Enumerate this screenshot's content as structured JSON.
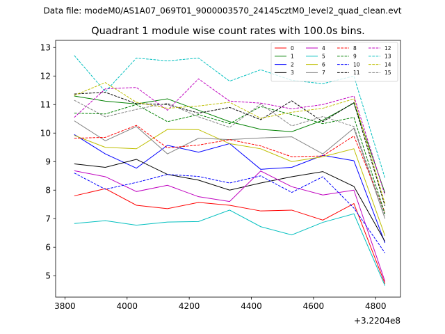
{
  "figure": {
    "suptitle": "Data file: modeM0/AS1A07_069T01_9000003570_24145cztM0_level2_quad_clean.evt"
  },
  "chart_data": {
    "type": "line",
    "title": "Quadrant 1 module wise count rates with 100.0s bins.",
    "xlabel": "",
    "ylabel": "",
    "x_offset_label": "+3.2204e8",
    "xlim": [
      3770,
      4880
    ],
    "ylim": [
      4.25,
      13.25
    ],
    "x_ticks": [
      3800,
      4000,
      4200,
      4400,
      4600,
      4800
    ],
    "y_ticks": [
      5,
      6,
      7,
      8,
      9,
      10,
      11,
      12,
      13
    ],
    "grid": false,
    "legend_location": "top-right",
    "x": [
      3830,
      3930,
      4030,
      4130,
      4230,
      4330,
      4430,
      4530,
      4630,
      4730,
      4830
    ],
    "series": [
      {
        "name": "0",
        "color": "#ff0000",
        "dash": "solid",
        "values": [
          7.8,
          8.05,
          7.47,
          7.35,
          7.57,
          7.47,
          7.27,
          7.3,
          6.95,
          7.53,
          4.72
        ]
      },
      {
        "name": "1",
        "color": "#008000",
        "dash": "solid",
        "values": [
          11.3,
          11.12,
          11.02,
          11.2,
          10.8,
          10.4,
          10.13,
          10.05,
          10.45,
          11.05,
          7.9
        ]
      },
      {
        "name": "2",
        "color": "#0000ff",
        "dash": "solid",
        "values": [
          9.95,
          9.27,
          8.77,
          9.57,
          9.33,
          9.63,
          8.73,
          8.8,
          9.22,
          9.03,
          6.15
        ]
      },
      {
        "name": "3",
        "color": "#000000",
        "dash": "solid",
        "values": [
          8.92,
          8.8,
          9.08,
          8.55,
          8.35,
          8.0,
          8.25,
          8.47,
          8.65,
          8.13,
          6.2
        ]
      },
      {
        "name": "4",
        "color": "#bf00bf",
        "dash": "solid",
        "values": [
          8.68,
          8.47,
          7.95,
          8.17,
          7.77,
          7.6,
          8.67,
          8.12,
          7.83,
          8.0,
          4.8
        ]
      },
      {
        "name": "5",
        "color": "#00bfbf",
        "dash": "solid",
        "values": [
          6.83,
          6.93,
          6.77,
          6.88,
          6.9,
          7.3,
          6.72,
          6.43,
          6.87,
          7.17,
          4.65
        ]
      },
      {
        "name": "6",
        "color": "#bfbf00",
        "dash": "solid",
        "values": [
          9.92,
          9.5,
          9.45,
          10.13,
          10.12,
          9.63,
          9.45,
          9.0,
          9.17,
          9.45,
          6.4
        ]
      },
      {
        "name": "7",
        "color": "#808080",
        "dash": "solid",
        "values": [
          10.43,
          9.73,
          10.23,
          9.27,
          9.82,
          9.77,
          9.83,
          9.87,
          9.27,
          10.17,
          7.0
        ]
      },
      {
        "name": "8",
        "color": "#ff0000",
        "dash": "dashed",
        "values": [
          9.82,
          9.85,
          10.27,
          9.48,
          9.58,
          9.77,
          9.55,
          9.17,
          9.2,
          9.9,
          7.22
        ]
      },
      {
        "name": "9",
        "color": "#008000",
        "dash": "dashed",
        "values": [
          10.7,
          10.67,
          11.0,
          10.4,
          10.65,
          10.33,
          10.93,
          10.65,
          10.33,
          10.55,
          7.17
        ]
      },
      {
        "name": "10",
        "color": "#0000ff",
        "dash": "dashed",
        "values": [
          8.6,
          8.03,
          8.27,
          8.55,
          8.48,
          8.25,
          8.5,
          7.92,
          8.47,
          7.37,
          5.8
        ]
      },
      {
        "name": "11",
        "color": "#000000",
        "dash": "dashed",
        "values": [
          11.37,
          11.43,
          11.03,
          11.0,
          10.7,
          10.9,
          10.47,
          11.13,
          10.4,
          11.07,
          7.45
        ]
      },
      {
        "name": "12",
        "color": "#bf00bf",
        "dash": "dashed",
        "values": [
          10.55,
          11.55,
          11.6,
          10.8,
          11.9,
          11.12,
          11.05,
          10.85,
          11.0,
          11.3,
          7.83
        ]
      },
      {
        "name": "13",
        "color": "#00bfbf",
        "dash": "dashed",
        "values": [
          12.72,
          11.45,
          12.63,
          12.53,
          12.63,
          11.82,
          12.22,
          11.85,
          11.73,
          12.0,
          8.42
        ]
      },
      {
        "name": "14",
        "color": "#bfbf00",
        "dash": "dashed",
        "values": [
          11.32,
          11.77,
          11.08,
          10.87,
          10.95,
          11.08,
          10.52,
          10.73,
          10.87,
          11.2,
          7.53
        ]
      },
      {
        "name": "15",
        "color": "#808080",
        "dash": "dashed",
        "values": [
          11.15,
          10.57,
          10.83,
          11.05,
          10.57,
          10.2,
          11.02,
          10.25,
          10.58,
          10.23,
          7.1
        ]
      }
    ]
  }
}
